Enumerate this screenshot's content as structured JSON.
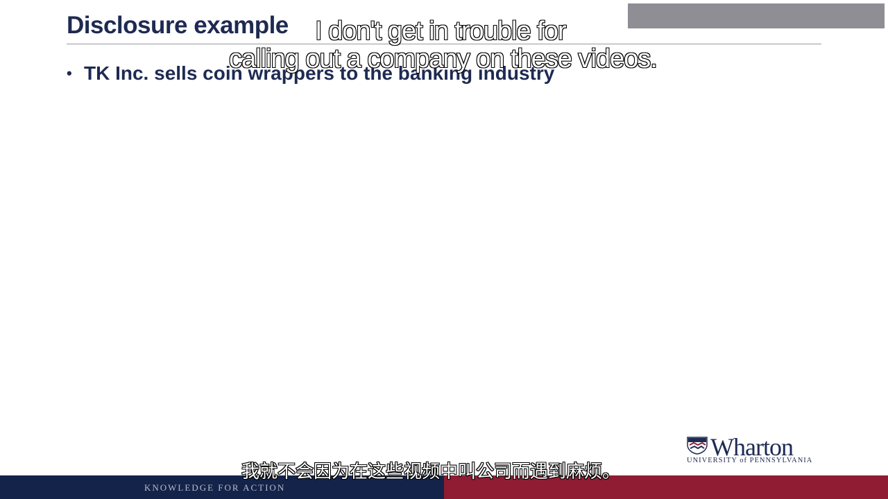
{
  "slide": {
    "title": "Disclosure example",
    "bullets": [
      {
        "marker": "•",
        "text": "TK Inc. sells coin wrappers to the banking industry"
      }
    ]
  },
  "subtitles": {
    "english_line_1": "I don't get in trouble for",
    "english_line_2": "calling out a company on these videos.",
    "chinese": "我就不会因为在这些视频中叫公司而遇到麻烦。"
  },
  "footer": {
    "tagline": "KNOWLEDGE FOR ACTION"
  },
  "logo": {
    "name": "Wharton",
    "university_line": "UNIVERSITY of PENNSYLVANIA"
  },
  "colors": {
    "navy": "#14234a",
    "crimson": "#8f1c33",
    "title_text": "#1e2a52",
    "grey_bar": "#8e8e94"
  }
}
